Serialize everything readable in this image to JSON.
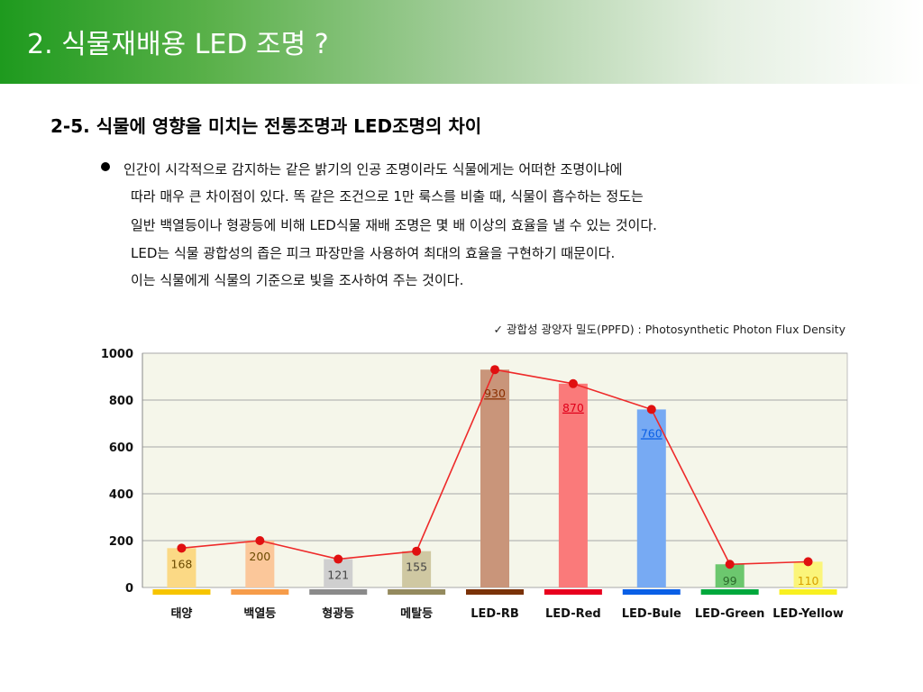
{
  "header": {
    "title": "2. 식물재배용 LED 조명 ?"
  },
  "section": {
    "subtitle": "2-5. 식물에 영향을 미치는 전통조명과 LED조명의 차이"
  },
  "bullet": {
    "lines": [
      "인간이 시각적으로 감지하는 같은 밝기의 인공 조명이라도 식물에게는 어떠한 조명이냐에",
      "따라 매우 큰 차이점이 있다.  똑 같은 조건으로 1만 룩스를 비출 때, 식물이 흡수하는 정도는",
      "일반 백열등이나 형광등에 비해 LED식물 재배 조명은 몇 배 이상의 효율을 낼 수 있는 것이다.",
      "LED는 식물 광합성의 좁은 피크 파장만을 사용하여 최대의 효율을 구현하기 때문이다.",
      "이는 식물에게 식물의 기준으로 빛을 조사하여 주는 것이다."
    ]
  },
  "chart_data": {
    "type": "bar",
    "title": "✓ 광합성 광양자 밀도(PPFD) : Photosynthetic Photon Flux Density",
    "categories": [
      "태양",
      "백열등",
      "형광등",
      "메탈등",
      "LED-RB",
      "LED-Red",
      "LED-Bule",
      "LED-Green",
      "LED-Yellow"
    ],
    "values": [
      168,
      200,
      121,
      155,
      930,
      870,
      760,
      99,
      110
    ],
    "bar_colors": [
      "#fbd985",
      "#fbc79a",
      "#cfcfcf",
      "#cfc8a2",
      "#c9957a",
      "#fa7a7a",
      "#77aaf3",
      "#6cc76e",
      "#fbf57a"
    ],
    "swatch_colors": [
      "#f6c400",
      "#f69c4a",
      "#8a8a8a",
      "#948a5e",
      "#7a3208",
      "#e8001e",
      "#0a5fe6",
      "#00a83c",
      "#f8f020"
    ],
    "label_colors": [
      "#6b4a00",
      "#6b4a00",
      "#444444",
      "#444444",
      "#8a2f00",
      "#e0001a",
      "#0a5fe6",
      "#2c6a2c",
      "#d8a000"
    ],
    "line_color": "#ee2a2a",
    "point_color": "#e01010",
    "yticks": [
      0,
      200,
      400,
      600,
      800,
      1000
    ],
    "ylim": [
      0,
      1000
    ],
    "grid": true,
    "background": "#f5f6ea"
  }
}
